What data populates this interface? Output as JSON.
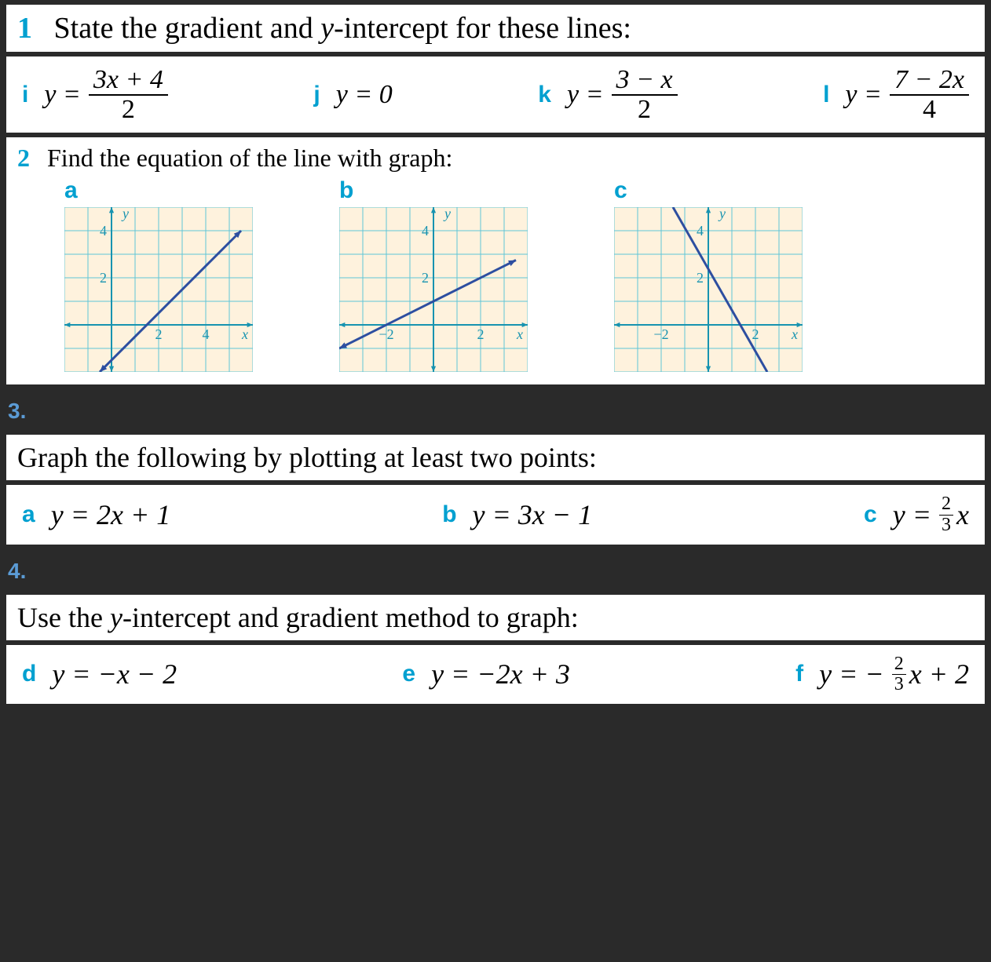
{
  "q1": {
    "number": "1",
    "text_pre": "State the gradient and ",
    "text_ital": "y",
    "text_post": "-intercept for these lines:",
    "items": {
      "i": {
        "label": "i",
        "lhs": "y =",
        "num": "3x + 4",
        "den": "2"
      },
      "j": {
        "label": "j",
        "rhs": "y = 0"
      },
      "k": {
        "label": "k",
        "lhs": "y =",
        "num": "3 − x",
        "den": "2"
      },
      "l": {
        "label": "l",
        "lhs": "y =",
        "num": "7 − 2x",
        "den": "4"
      }
    }
  },
  "q2": {
    "number": "2",
    "text": "Find the equation of the line with graph:",
    "labels": {
      "a": "a",
      "b": "b",
      "c": "c"
    },
    "graphs": {
      "common": {
        "cell": 30,
        "bg": "#fef2dd",
        "grid": "#5fc5d8",
        "axis": "#1793b0",
        "labelColor": "#1793b0",
        "lineColor": "#2d4ea0",
        "lineWidth": 3
      },
      "a": {
        "xRange": [
          -2,
          6
        ],
        "yRange": [
          -2,
          5
        ],
        "xTicks": [
          {
            "v": 2,
            "l": "2"
          },
          {
            "v": 4,
            "l": "4"
          }
        ],
        "yTicks": [
          {
            "v": 2,
            "l": "2"
          },
          {
            "v": 4,
            "l": "4"
          }
        ],
        "xLabel": "x",
        "yLabel": "y",
        "line": {
          "x1": -0.5,
          "y1": -2,
          "x2": 5.5,
          "y2": 4
        },
        "arrowsOnLine": true
      },
      "b": {
        "xRange": [
          -4,
          4
        ],
        "yRange": [
          -2,
          5
        ],
        "xTicks": [
          {
            "v": -2,
            "l": "−2"
          },
          {
            "v": 2,
            "l": "2"
          }
        ],
        "yTicks": [
          {
            "v": 2,
            "l": "2"
          },
          {
            "v": 4,
            "l": "4"
          }
        ],
        "xLabel": "x",
        "yLabel": "y",
        "line": {
          "x1": -4,
          "y1": -1,
          "x2": 3.5,
          "y2": 2.75
        },
        "arrowsOnLine": true
      },
      "c": {
        "xRange": [
          -4,
          4
        ],
        "yRange": [
          -2,
          5
        ],
        "xTicks": [
          {
            "v": -2,
            "l": "−2"
          },
          {
            "v": 2,
            "l": "2"
          }
        ],
        "yTicks": [
          {
            "v": 2,
            "l": "2"
          },
          {
            "v": 4,
            "l": "4"
          }
        ],
        "xLabel": "x",
        "yLabel": "y",
        "line": {
          "x1": -1.5,
          "y1": 5,
          "x2": 2.5,
          "y2": -2
        },
        "arrowsOnLine": false
      }
    }
  },
  "sec3": {
    "number": "3."
  },
  "q3": {
    "text": "Graph the following by plotting at least two points:",
    "items": {
      "a": {
        "label": "a",
        "eq": "y = 2x + 1"
      },
      "b": {
        "label": "b",
        "eq": "y = 3x − 1"
      },
      "c": {
        "label": "c",
        "lhs": "y = ",
        "fracNum": "2",
        "fracDen": "3",
        "post": "x"
      }
    }
  },
  "sec4": {
    "number": "4."
  },
  "q4": {
    "text_pre": "Use the ",
    "text_ital": "y",
    "text_post": "-intercept and gradient method to graph:",
    "items": {
      "d": {
        "label": "d",
        "eq": "y = −x − 2"
      },
      "e": {
        "label": "e",
        "eq": "y = −2x + 3"
      },
      "f": {
        "label": "f",
        "lhs": "y = −",
        "fracNum": "2",
        "fracDen": "3",
        "post": "x + 2"
      }
    }
  }
}
